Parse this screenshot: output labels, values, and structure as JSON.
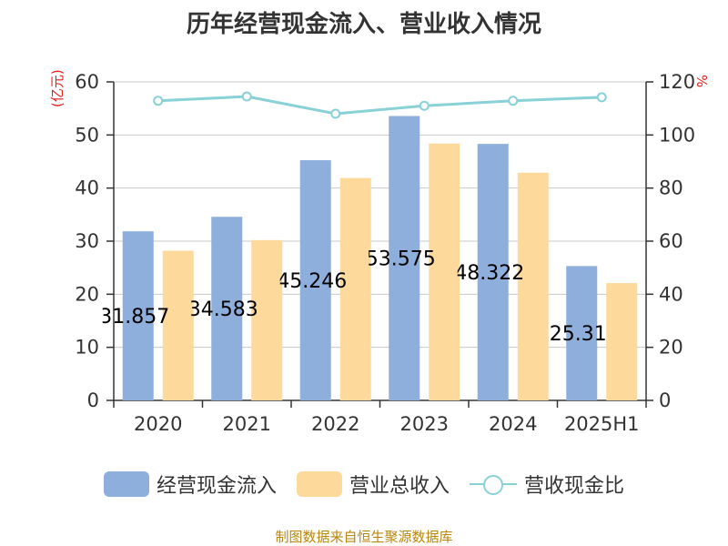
{
  "chart_data": {
    "type": "bar",
    "title": "历年经营现金流入、营业收入情况",
    "categories": [
      "2020",
      "2021",
      "2022",
      "2023",
      "2024",
      "2025H1"
    ],
    "ylabel_left": "(亿元)",
    "ylabel_right": "%",
    "ylim_left": [
      0,
      60
    ],
    "ylim_right": [
      0,
      120
    ],
    "yticks_left": [
      0,
      10,
      20,
      30,
      40,
      50,
      60
    ],
    "yticks_right": [
      0,
      20,
      40,
      60,
      80,
      100,
      120
    ],
    "grid": true,
    "legend_position": "bottom",
    "series": [
      {
        "name": "经营现金流入",
        "type": "bar",
        "axis": "left",
        "color": "#8eaedb",
        "values": [
          31.857,
          34.583,
          45.246,
          53.575,
          48.322,
          25.31
        ],
        "labels": [
          "31.857",
          "34.583",
          "45.246",
          "53.575",
          "48.322",
          "25.31"
        ]
      },
      {
        "name": "营业总收入",
        "type": "bar",
        "axis": "left",
        "color": "#fdd99b",
        "values": [
          28.2,
          30.2,
          41.9,
          48.4,
          42.9,
          22.1
        ]
      },
      {
        "name": "营收现金比",
        "type": "line",
        "axis": "right",
        "color": "#88d1d6",
        "values": [
          112.9,
          114.5,
          108.0,
          111.0,
          112.9,
          114.2
        ]
      }
    ]
  },
  "source": "制图数据来自恒生聚源数据库"
}
